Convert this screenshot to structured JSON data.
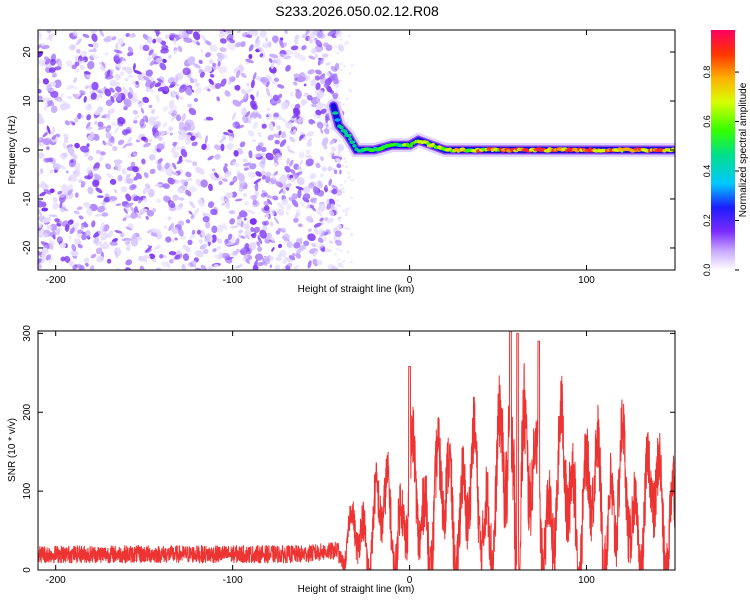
{
  "title": "S233.2026.050.02.12.R08",
  "chart_data": [
    {
      "type": "heatmap",
      "xlabel": "Height of straight line (km)",
      "ylabel": "Frequency (Hz)",
      "xlim": [
        -210,
        150
      ],
      "ylim": [
        -24.5,
        24.5
      ],
      "xticks": [
        -200,
        -100,
        0,
        100
      ],
      "yticks": [
        -20,
        -10,
        0,
        10,
        20
      ],
      "colorbar": {
        "label": "Normalized spectral amplitude",
        "range": [
          0,
          0.97
        ],
        "ticks": [
          0.0,
          0.2,
          0.4,
          0.6,
          0.8
        ]
      },
      "features": {
        "noise_region_x": [
          -210,
          -42
        ],
        "signal_trace": [
          {
            "x": -43,
            "y": 9
          },
          {
            "x": -40,
            "y": 5
          },
          {
            "x": -35,
            "y": 3
          },
          {
            "x": -30,
            "y": 0
          },
          {
            "x": -20,
            "y": 0
          },
          {
            "x": -10,
            "y": 1
          },
          {
            "x": 0,
            "y": 1
          },
          {
            "x": 5,
            "y": 2
          },
          {
            "x": 20,
            "y": 0
          },
          {
            "x": 50,
            "y": 0
          },
          {
            "x": 100,
            "y": 0
          },
          {
            "x": 150,
            "y": 0
          }
        ]
      }
    },
    {
      "type": "line",
      "xlabel": "Height of straight line (km)",
      "ylabel": "SNR (10 * v/v)",
      "xlim": [
        -210,
        150
      ],
      "ylim": [
        0,
        303
      ],
      "xticks": [
        -200,
        -100,
        0,
        100
      ],
      "yticks": [
        0,
        100,
        200,
        300
      ],
      "color": "#ee3333",
      "envelope": [
        {
          "x": -210,
          "y": 20
        },
        {
          "x": -150,
          "y": 20
        },
        {
          "x": -60,
          "y": 20
        },
        {
          "x": -40,
          "y": 25
        },
        {
          "x": -35,
          "y": 55
        },
        {
          "x": -30,
          "y": 80
        },
        {
          "x": -20,
          "y": 110
        },
        {
          "x": -10,
          "y": 120
        },
        {
          "x": 0,
          "y": 140
        },
        {
          "x": 10,
          "y": 150
        },
        {
          "x": 20,
          "y": 150
        },
        {
          "x": 30,
          "y": 160
        },
        {
          "x": 40,
          "y": 150
        },
        {
          "x": 50,
          "y": 170
        },
        {
          "x": 60,
          "y": 260
        },
        {
          "x": 65,
          "y": 240
        },
        {
          "x": 70,
          "y": 150
        },
        {
          "x": 80,
          "y": 150
        },
        {
          "x": 90,
          "y": 190
        },
        {
          "x": 100,
          "y": 150
        },
        {
          "x": 110,
          "y": 170
        },
        {
          "x": 120,
          "y": 155
        },
        {
          "x": 130,
          "y": 130
        },
        {
          "x": 140,
          "y": 150
        },
        {
          "x": 150,
          "y": 160
        }
      ],
      "peaks": [
        {
          "x": 0,
          "y": 258
        },
        {
          "x": 57,
          "y": 303
        },
        {
          "x": 61,
          "y": 300
        },
        {
          "x": 73,
          "y": 290
        }
      ]
    }
  ]
}
